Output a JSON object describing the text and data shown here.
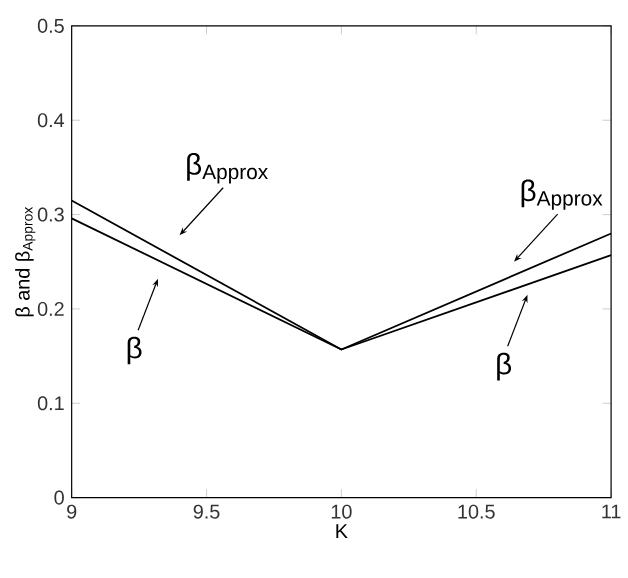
{
  "chart_data": {
    "type": "line",
    "xlabel": "K",
    "ylabel": "β and β$_{Approx}$",
    "x": [
      9,
      10,
      11
    ],
    "series": [
      {
        "color": "#000000",
        "values": [
          0.315,
          0.157,
          0.28
        ]
      },
      {
        "color": "#000000",
        "values": [
          0.296,
          0.157,
          0.257
        ]
      }
    ],
    "xlim": [
      9,
      11
    ],
    "ylim": [
      0,
      0.5
    ],
    "xticks": [
      9,
      9.5,
      10,
      10.5,
      11
    ],
    "yticks": [
      0,
      0.1,
      0.2,
      0.3,
      0.4,
      0.5
    ],
    "annotations": [
      {
        "text": "β$_{Approx}$",
        "x": 9.4,
        "y": 0.278
      },
      {
        "text": "β",
        "x": 9.32,
        "y": 0.232
      },
      {
        "text": "β$_{Approx}$",
        "x": 10.64,
        "y": 0.25
      },
      {
        "text": "β",
        "x": 10.69,
        "y": 0.215
      }
    ]
  }
}
